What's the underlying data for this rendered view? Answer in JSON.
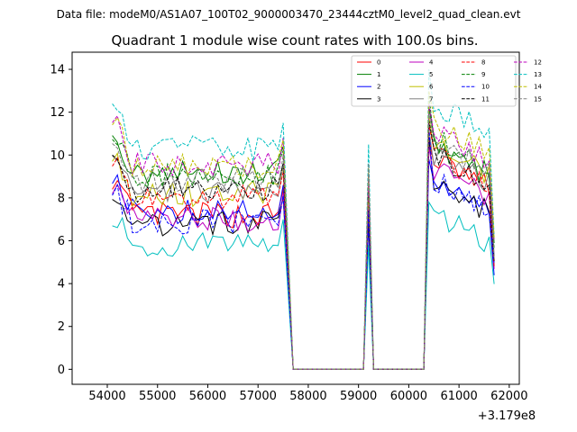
{
  "suptitle": "Data file: modeM0/AS1A07_100T02_9000003470_23444cztM0_level2_quad_clean.evt",
  "chart_data": {
    "type": "line",
    "title": "Quadrant 1 module wise count rates with 100.0s bins.",
    "xlabel": "",
    "ylabel": "",
    "x_offset_label": "+3.179e8",
    "xlim": [
      53300,
      62200
    ],
    "ylim": [
      -0.7,
      14.8
    ],
    "x_ticks": [
      54000,
      55000,
      56000,
      57000,
      58000,
      59000,
      60000,
      61000,
      62000
    ],
    "y_ticks": [
      0,
      2,
      4,
      6,
      8,
      10,
      12,
      14
    ],
    "grid": false,
    "legend_position": "top-right",
    "x_segments": [
      {
        "start": 54100,
        "end": 57500
      },
      {
        "start": 57700,
        "end": 57700
      },
      {
        "start": 59000,
        "end": 59000
      },
      {
        "start": 59100,
        "end": 59300
      },
      {
        "start": 59400,
        "end": 59400
      },
      {
        "start": 60300,
        "end": 60300
      },
      {
        "start": 60400,
        "end": 61700
      }
    ],
    "series": [
      {
        "name": "0",
        "color": "#ff0000",
        "dash": "solid",
        "base": 7.2,
        "post": 9.8,
        "peak1": 7.6,
        "peak2": 10.8
      },
      {
        "name": "1",
        "color": "#008000",
        "dash": "solid",
        "base": 9.2,
        "post": 10.4,
        "peak1": 8.6,
        "peak2": 12.2
      },
      {
        "name": "2",
        "color": "#0000ff",
        "dash": "solid",
        "base": 7.4,
        "post": 8.6,
        "peak1": 6.8,
        "peak2": 9.8
      },
      {
        "name": "3",
        "color": "#000000",
        "dash": "solid",
        "base": 6.8,
        "post": 8.6,
        "peak1": 7.2,
        "peak2": 10.8
      },
      {
        "name": "4",
        "color": "#bf00bf",
        "dash": "solid",
        "base": 7.0,
        "post": 9.4,
        "peak1": 8.0,
        "peak2": 10.4
      },
      {
        "name": "5",
        "color": "#00bfbf",
        "dash": "solid",
        "base": 5.8,
        "post": 7.2,
        "peak1": 5.8,
        "peak2": 7.8
      },
      {
        "name": "6",
        "color": "#bfbf00",
        "dash": "solid",
        "base": 8.2,
        "post": 10.4,
        "peak1": 8.4,
        "peak2": 11.8
      },
      {
        "name": "7",
        "color": "#808080",
        "dash": "solid",
        "base": 8.4,
        "post": 10.0,
        "peak1": 9.2,
        "peak2": 11.2
      },
      {
        "name": "8",
        "color": "#ff0000",
        "dash": "dashed",
        "base": 8.0,
        "post": 10.0,
        "peak1": 8.8,
        "peak2": 11.4
      },
      {
        "name": "9",
        "color": "#008000",
        "dash": "dashed",
        "base": 9.0,
        "post": 10.8,
        "peak1": 9.0,
        "peak2": 12.8
      },
      {
        "name": "10",
        "color": "#0000ff",
        "dash": "dashed",
        "base": 6.9,
        "post": 8.8,
        "peak1": 7.4,
        "peak2": 11.2
      },
      {
        "name": "11",
        "color": "#000000",
        "dash": "dashed",
        "base": 8.4,
        "post": 10.0,
        "peak1": 8.8,
        "peak2": 11.6
      },
      {
        "name": "12",
        "color": "#bf00bf",
        "dash": "dashed",
        "base": 9.6,
        "post": 11.0,
        "peak1": 9.0,
        "peak2": 12.4
      },
      {
        "name": "13",
        "color": "#00bfbf",
        "dash": "dashed",
        "base": 10.3,
        "post": 12.4,
        "peak1": 10.5,
        "peak2": 14.0
      },
      {
        "name": "14",
        "color": "#bfbf00",
        "dash": "dashed",
        "base": 9.5,
        "post": 11.4,
        "peak1": 9.4,
        "peak2": 13.0
      },
      {
        "name": "15",
        "color": "#808080",
        "dash": "dashed",
        "base": 8.8,
        "post": 10.6,
        "peak1": 9.6,
        "peak2": 12.0
      }
    ]
  }
}
